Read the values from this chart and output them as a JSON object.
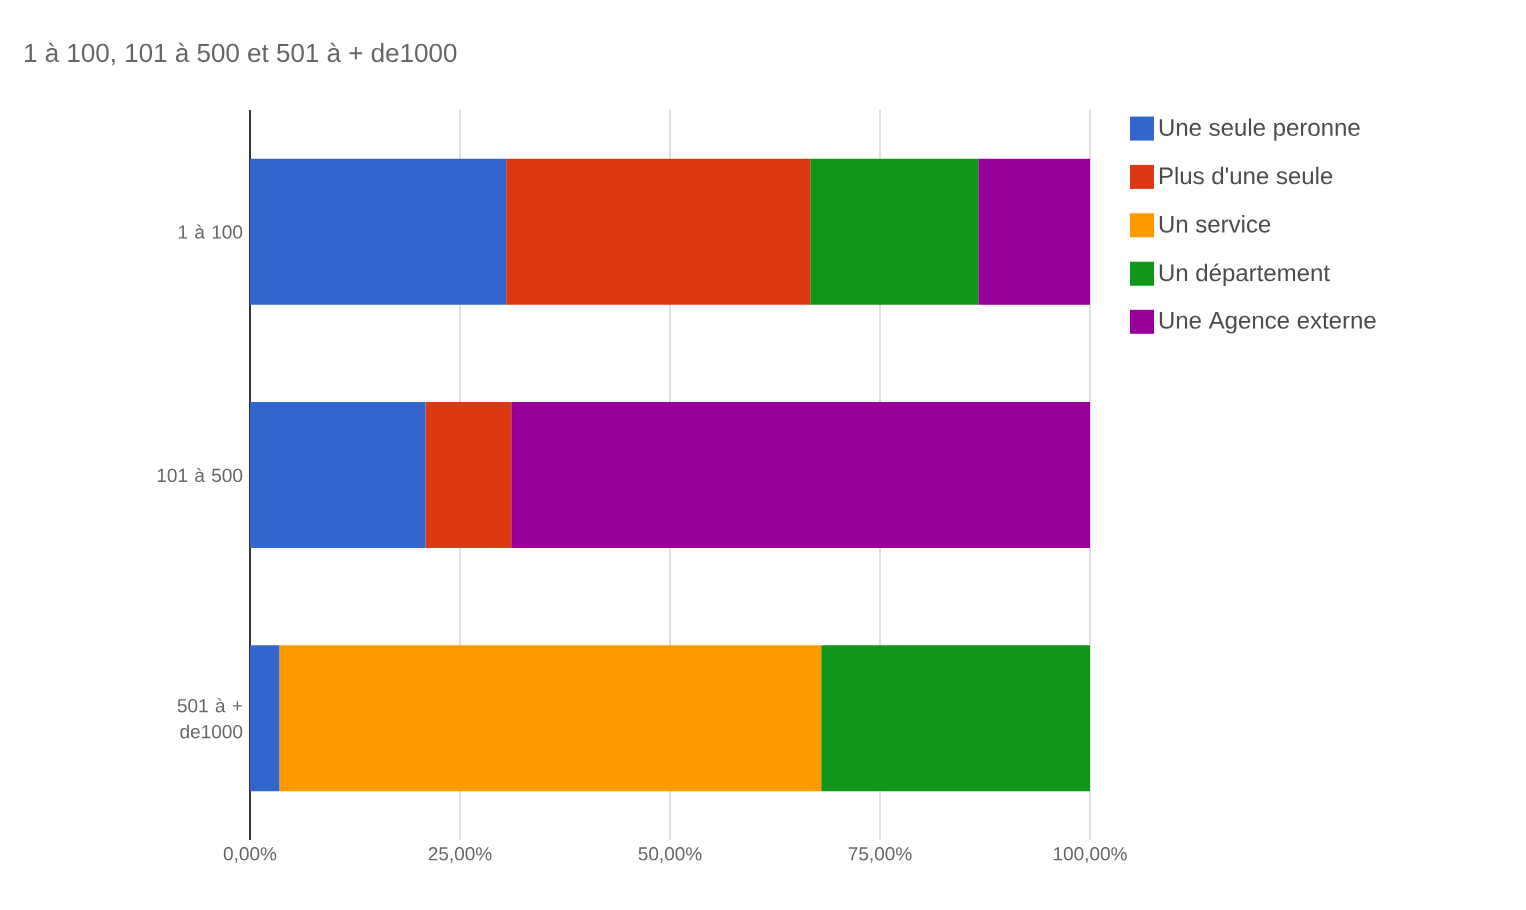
{
  "chart_data": {
    "type": "bar",
    "orientation": "horizontal",
    "stacked": true,
    "title": "1  à 100, 101 à 500 et 501 à + de1000",
    "categories": [
      "1  à 100",
      "101 à 500",
      "501 à + de1000"
    ],
    "series": [
      {
        "name": "Une seule peronne",
        "color": "#3366cc",
        "values": [
          30.5,
          20.9,
          3.5
        ]
      },
      {
        "name": "Plus d'une seule",
        "color": "#dc3912",
        "values": [
          36.2,
          10.2,
          0
        ]
      },
      {
        "name": "Un service",
        "color": "#ff9900",
        "values": [
          0,
          0,
          64.5
        ]
      },
      {
        "name": "Un département",
        "color": "#109618",
        "values": [
          20.0,
          0,
          32.0
        ]
      },
      {
        "name": "Une Agence externe",
        "color": "#990099",
        "values": [
          13.3,
          68.9,
          0
        ]
      }
    ],
    "xlim": [
      0,
      100
    ],
    "xticks": [
      {
        "value": 0,
        "label": "0,00%"
      },
      {
        "value": 25,
        "label": "25,00%"
      },
      {
        "value": 50,
        "label": "50,00%"
      },
      {
        "value": 75,
        "label": "75,00%"
      },
      {
        "value": 100,
        "label": "100,00%"
      }
    ],
    "grid": "x",
    "legend": "right"
  }
}
